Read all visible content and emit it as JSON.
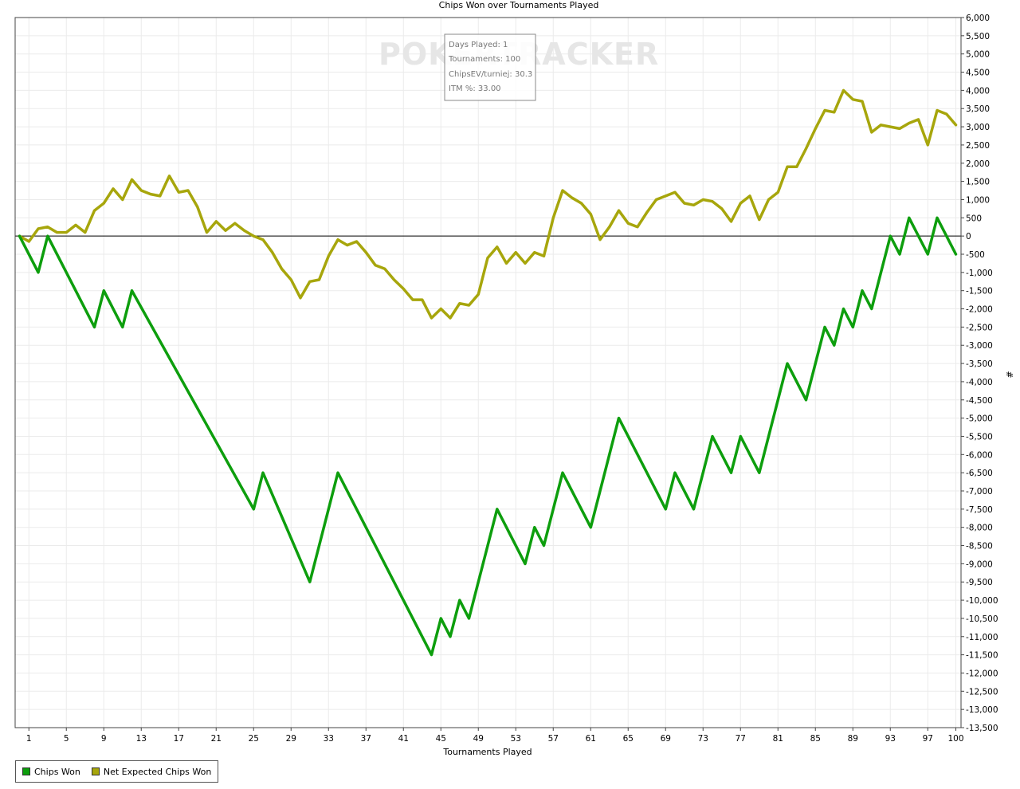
{
  "chart_data": {
    "type": "line",
    "title": "Chips Won over Tournaments Played",
    "xlabel": "Tournaments Played",
    "ylabel": "#",
    "xlim": [
      0,
      100
    ],
    "ylim": [
      -13500,
      6000
    ],
    "y_ticks": [
      6000,
      5500,
      5000,
      4500,
      4000,
      3500,
      3000,
      2500,
      2000,
      1500,
      1000,
      500,
      0,
      -500,
      -1000,
      -1500,
      -2000,
      -2500,
      -3000,
      -3500,
      -4000,
      -4500,
      -5000,
      -5500,
      -6000,
      -6500,
      -7000,
      -7500,
      -8000,
      -8500,
      -9000,
      -9500,
      -10000,
      -10500,
      -11000,
      -11500,
      -12000,
      -12500,
      -13000,
      -13500
    ],
    "y_tick_labels": [
      "6,000",
      "5,500",
      "5,000",
      "4,500",
      "4,000",
      "3,500",
      "3,000",
      "2,500",
      "2,000",
      "1,500",
      "1,000",
      "500",
      "0",
      "-500",
      "-1,000",
      "-1,500",
      "-2,000",
      "-2,500",
      "-3,000",
      "-3,500",
      "-4,000",
      "-4,500",
      "-5,000",
      "-5,500",
      "-6,000",
      "-6,500",
      "-7,000",
      "-7,500",
      "-8,000",
      "-8,500",
      "-9,000",
      "-9,500",
      "-10,000",
      "-10,500",
      "-11,000",
      "-11,500",
      "-12,000",
      "-12,500",
      "-13,000",
      "-13,500"
    ],
    "x_ticks": [
      1,
      5,
      9,
      13,
      17,
      21,
      25,
      29,
      33,
      37,
      41,
      45,
      49,
      53,
      57,
      61,
      65,
      69,
      73,
      77,
      81,
      85,
      89,
      93,
      97,
      100
    ],
    "x_tick_labels": [
      "1",
      "5",
      "9",
      "13",
      "17",
      "21",
      "25",
      "29",
      "33",
      "37",
      "41",
      "45",
      "49",
      "53",
      "57",
      "61",
      "65",
      "69",
      "73",
      "77",
      "81",
      "85",
      "89",
      "93",
      "97",
      "100"
    ],
    "grid": true,
    "legend_position": "bottom-left",
    "series": [
      {
        "name": "Chips Won",
        "color": "#0d9e0d",
        "x": [
          0,
          2,
          3,
          8,
          9,
          11,
          12,
          25,
          26,
          31,
          34,
          44,
          45,
          46,
          47,
          48,
          51,
          54,
          55,
          56,
          58,
          61,
          64,
          69,
          70,
          72,
          74,
          76,
          77,
          79,
          82,
          84,
          86,
          87,
          88,
          89,
          90,
          91,
          92,
          93,
          94,
          95,
          97,
          98,
          100
        ],
        "y": [
          0,
          -1000,
          0,
          -2500,
          -1500,
          -2500,
          -1500,
          -7500,
          -6500,
          -9500,
          -6500,
          -11500,
          -10500,
          -11000,
          -10000,
          -10500,
          -7500,
          -9000,
          -8000,
          -8500,
          -6500,
          -8000,
          -5000,
          -7500,
          -6500,
          -7500,
          -5500,
          -6500,
          -5500,
          -6500,
          -3500,
          -4500,
          -2500,
          -3000,
          -2000,
          -2500,
          -1500,
          -2000,
          -1000,
          0,
          -500,
          500,
          -500,
          500,
          -500
        ]
      },
      {
        "name": "Net Expected Chips Won",
        "color": "#a7a60c",
        "x": [
          0,
          1,
          2,
          3,
          4,
          5,
          6,
          7,
          8,
          9,
          10,
          11,
          12,
          13,
          14,
          15,
          16,
          17,
          18,
          19,
          20,
          21,
          22,
          23,
          24,
          25,
          26,
          27,
          28,
          29,
          30,
          31,
          32,
          33,
          34,
          35,
          36,
          37,
          38,
          39,
          40,
          41,
          42,
          43,
          44,
          45,
          46,
          47,
          48,
          49,
          50,
          51,
          52,
          53,
          54,
          55,
          56,
          57,
          58,
          59,
          60,
          61,
          62,
          63,
          64,
          65,
          66,
          67,
          68,
          69,
          70,
          71,
          72,
          73,
          74,
          75,
          76,
          77,
          78,
          79,
          80,
          81,
          82,
          83,
          84,
          85,
          86,
          87,
          88,
          89,
          90,
          91,
          92,
          93,
          94,
          95,
          96,
          97,
          98,
          99,
          100
        ],
        "y": [
          0,
          -150,
          200,
          250,
          100,
          100,
          300,
          100,
          700,
          900,
          1300,
          1000,
          1550,
          1250,
          1150,
          1100,
          1650,
          1200,
          1250,
          800,
          100,
          400,
          150,
          350,
          150,
          0,
          -100,
          -450,
          -900,
          -1200,
          -1700,
          -1250,
          -1200,
          -550,
          -100,
          -250,
          -150,
          -450,
          -800,
          -900,
          -1200,
          -1450,
          -1750,
          -1750,
          -2250,
          -2000,
          -2250,
          -1850,
          -1900,
          -1600,
          -600,
          -300,
          -750,
          -450,
          -750,
          -450,
          -550,
          500,
          1250,
          1050,
          900,
          600,
          -100,
          250,
          700,
          350,
          250,
          650,
          1000,
          1100,
          1200,
          900,
          850,
          1000,
          950,
          750,
          400,
          900,
          1100,
          450,
          1000,
          1200,
          1900,
          1900,
          2400,
          2950,
          3450,
          3400,
          4000,
          3750,
          3700,
          2850,
          3050,
          3000,
          2950,
          3100,
          3200,
          2500,
          3450,
          3350,
          3050
        ]
      }
    ],
    "annotations": {
      "watermark": "POKERTRACKER",
      "tooltip_lines": [
        "Days Played: 1",
        "Tournaments: 100",
        "ChipsEV/turniej: 30.3",
        "ITM %: 33.00"
      ]
    }
  }
}
